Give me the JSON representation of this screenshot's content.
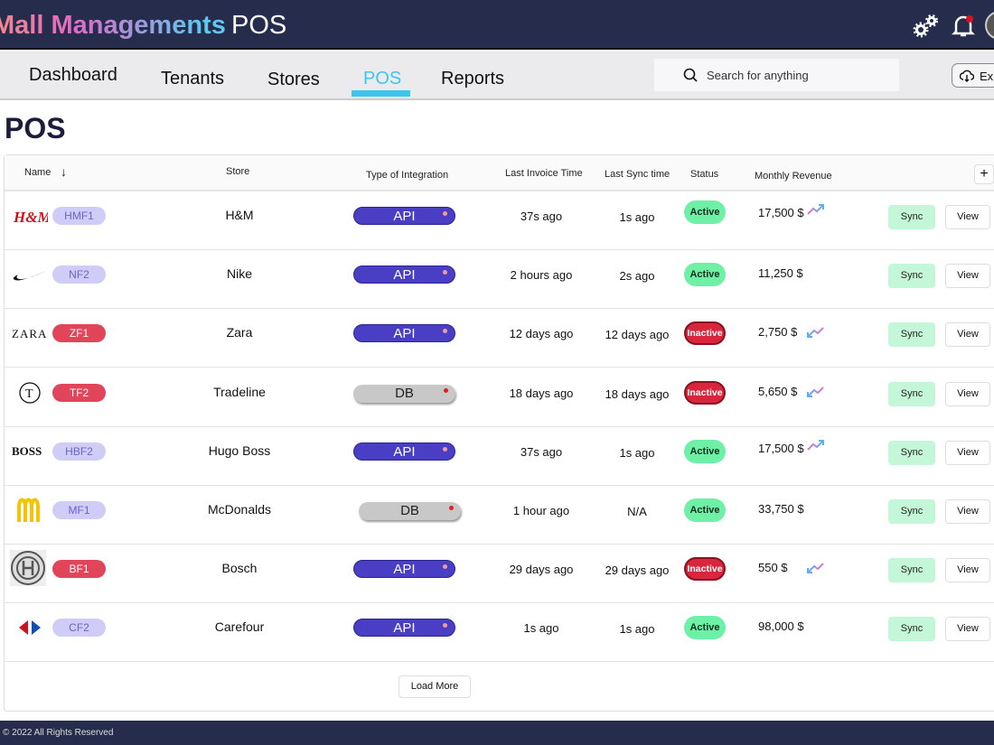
{
  "app": {
    "brand": "Mall Managements",
    "brand_suffix": "POS"
  },
  "nav": {
    "tabs": [
      "Dashboard",
      "Tenants",
      "Stores",
      "POS",
      "Reports"
    ],
    "active": "POS",
    "search_placeholder": "Search for anything",
    "export_label": "Exp"
  },
  "page": {
    "title": "POS"
  },
  "table": {
    "headers": {
      "name": "Name",
      "store": "Store",
      "integration": "Type of Integration",
      "last_invoice": "Last Invoice Time",
      "last_sync": "Last Sync time",
      "status": "Status",
      "revenue": "Monthly Revenue"
    },
    "rows": [
      {
        "logo": "H&M",
        "code": "HMF1",
        "store": "H&M",
        "integration": "API",
        "invoice": "37s ago",
        "sync": "1s ago",
        "status": "Active",
        "revenue": "17,500 $",
        "trend": "up"
      },
      {
        "logo": "Nike",
        "code": "NF2",
        "store": "Nike",
        "integration": "API",
        "invoice": "2 hours ago",
        "sync": "2s ago",
        "status": "Active",
        "revenue": "11,250 $",
        "trend": ""
      },
      {
        "logo": "ZARA",
        "code": "ZF1",
        "store": "Zara",
        "integration": "API",
        "invoice": "12 days ago",
        "sync": "12 days ago",
        "status": "Inactive",
        "revenue": "2,750 $",
        "trend": "down"
      },
      {
        "logo": "T",
        "code": "TF2",
        "store": "Tradeline",
        "integration": "DB",
        "invoice": "18 days ago",
        "sync": "18 days ago",
        "status": "Inactive",
        "revenue": "5,650 $",
        "trend": "down"
      },
      {
        "logo": "BOSS",
        "code": "HBF2",
        "store": "Hugo Boss",
        "integration": "API",
        "invoice": "37s ago",
        "sync": "1s ago",
        "status": "Active",
        "revenue": "17,500 $",
        "trend": "up"
      },
      {
        "logo": "McDonalds",
        "code": "MF1",
        "store": "McDonalds",
        "integration": "DB",
        "invoice": "1 hour ago",
        "sync": "N/A",
        "status": "Active",
        "revenue": "33,750 $",
        "trend": ""
      },
      {
        "logo": "Bosch",
        "code": "BF1",
        "store": "Bosch",
        "integration": "API",
        "invoice": "29 days ago",
        "sync": "29 days ago",
        "status": "Inactive",
        "revenue": "550 $",
        "trend": "down"
      },
      {
        "logo": "Carrefour",
        "code": "CF2",
        "store": "Carefour",
        "integration": "API",
        "invoice": "1s ago",
        "sync": "1s ago",
        "status": "Active",
        "revenue": "98,000 $",
        "trend": ""
      }
    ],
    "sync_label": "Sync",
    "view_label": "View",
    "load_more": "Load More",
    "add_label": "+"
  },
  "footer": {
    "text": "© 2022 All Rights Reserved"
  },
  "colors": {
    "navbar": "#262c4b",
    "accent": "#3dc5ef",
    "api": "#4a3ec4",
    "active": "#6ef0a6",
    "inactive": "#d8263c"
  }
}
